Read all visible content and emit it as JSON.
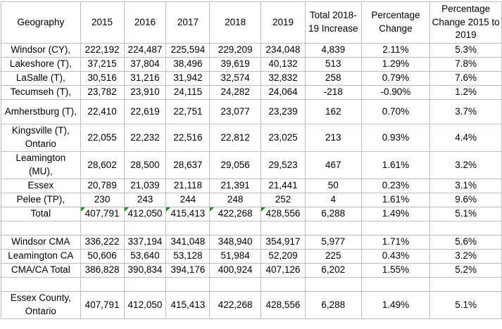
{
  "colors": {
    "background": "#ffffff",
    "text": "#000000",
    "grid_border": "#bfbfbf",
    "error_flag_green": "#1f8a1f"
  },
  "header": {
    "columns": [
      "Geography",
      "2015",
      "2016",
      "2017",
      "2018",
      "2019",
      "Total 2018-19 Increase",
      "Percentage Change",
      "Percentage Change 2015 to 2019"
    ]
  },
  "rows": [
    {
      "kind": "single",
      "label": "Windsor (CY),",
      "values": [
        "222,192",
        "224,487",
        "225,594",
        "229,209",
        "234,048",
        "4,839",
        "2.11%",
        "5.3%"
      ],
      "flags": []
    },
    {
      "kind": "single",
      "label": "Lakeshore (T),",
      "values": [
        "37,215",
        "37,804",
        "38,496",
        "39,619",
        "40,132",
        "513",
        "1.29%",
        "7.8%"
      ],
      "flags": []
    },
    {
      "kind": "single",
      "label": "LaSalle (T),",
      "values": [
        "30,516",
        "31,216",
        "31,942",
        "32,574",
        "32,832",
        "258",
        "0.79%",
        "7.6%"
      ],
      "flags": []
    },
    {
      "kind": "single",
      "label": "Tecumseh (T),",
      "values": [
        "23,782",
        "23,910",
        "24,115",
        "24,282",
        "24,064",
        "-218",
        "-0.90%",
        "1.2%"
      ],
      "flags": []
    },
    {
      "kind": "tall",
      "label": "Amherstburg (T),",
      "values": [
        "22,410",
        "22,619",
        "22,751",
        "23,077",
        "23,239",
        "162",
        "0.70%",
        "3.7%"
      ],
      "flags": []
    },
    {
      "kind": "double",
      "label": "Kingsville (T),\nOntario",
      "values": [
        "22,055",
        "22,232",
        "22,516",
        "22,812",
        "23,025",
        "213",
        "0.93%",
        "4.4%"
      ],
      "flags": []
    },
    {
      "kind": "double",
      "label": "Leamington\n(MU),",
      "values": [
        "28,602",
        "28,500",
        "28,637",
        "29,056",
        "29,523",
        "467",
        "1.61%",
        "3.2%"
      ],
      "flags": []
    },
    {
      "kind": "single",
      "label": "Essex",
      "values": [
        "20,789",
        "21,039",
        "21,118",
        "21,391",
        "21,441",
        "50",
        "0.23%",
        "3.1%"
      ],
      "flags": []
    },
    {
      "kind": "single",
      "label": "Pelee (TP),",
      "values": [
        "230",
        "243",
        "244",
        "248",
        "252",
        "4",
        "1.61%",
        "9.6%"
      ],
      "flags": []
    },
    {
      "kind": "single",
      "label": "Total",
      "values": [
        "407,791",
        "412,050",
        "415,413",
        "422,268",
        "428,556",
        "6,288",
        "1.49%",
        "5.1%"
      ],
      "flags": [
        0,
        1,
        2,
        3,
        4
      ]
    },
    {
      "kind": "spacer",
      "label": "",
      "values": [
        "",
        "",
        "",
        "",
        "",
        "",
        "",
        ""
      ],
      "flags": []
    },
    {
      "kind": "single",
      "label": "Windsor CMA",
      "values": [
        "336,222",
        "337,194",
        "341,048",
        "348,940",
        "354,917",
        "5,977",
        "1.71%",
        "5.6%"
      ],
      "flags": []
    },
    {
      "kind": "single",
      "label": "Leamington CA",
      "values": [
        "50,606",
        "53,640",
        "53,128",
        "51,984",
        "52,209",
        "225",
        "0.43%",
        "3.2%"
      ],
      "flags": []
    },
    {
      "kind": "single",
      "label": "CMA/CA Total",
      "values": [
        "386,828",
        "390,834",
        "394,176",
        "400,924",
        "407,126",
        "6,202",
        "1.55%",
        "5.2%"
      ],
      "flags": []
    },
    {
      "kind": "spacer",
      "label": "",
      "values": [
        "",
        "",
        "",
        "",
        "",
        "",
        "",
        ""
      ],
      "flags": []
    },
    {
      "kind": "double",
      "label": "Essex County,\nOntario",
      "values": [
        "407,791",
        "412,050",
        "415,413",
        "422,268",
        "428,556",
        "6,288",
        "1.49%",
        "5.1%"
      ],
      "flags": []
    }
  ]
}
